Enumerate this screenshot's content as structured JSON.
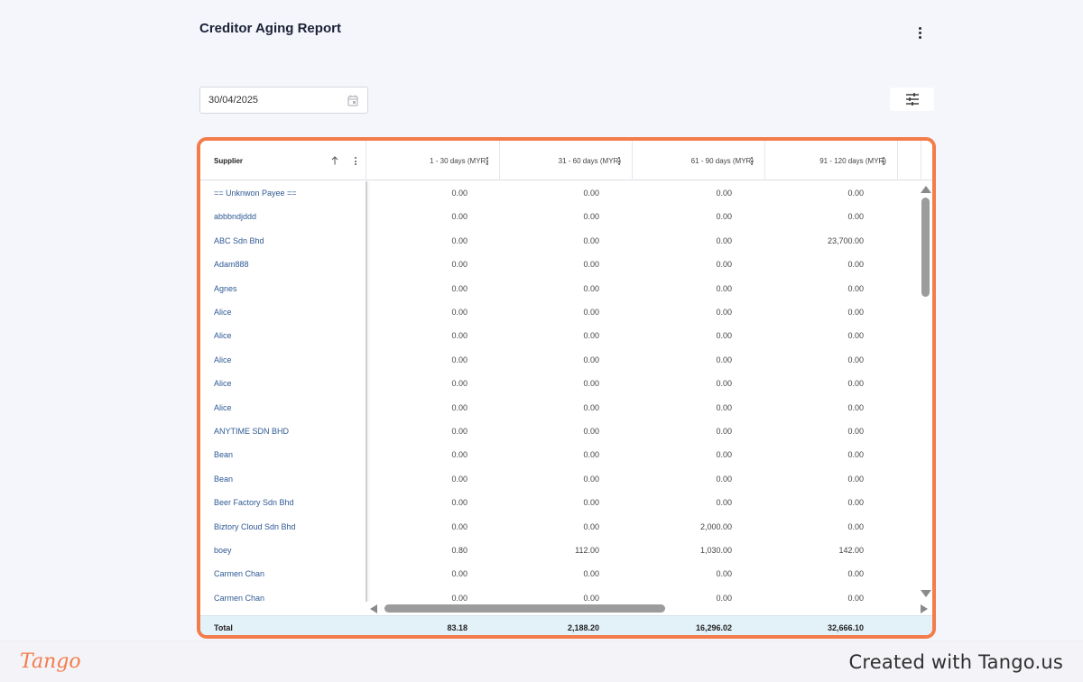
{
  "page": {
    "title": "Creditor Aging Report"
  },
  "date_filter": {
    "value": "30/04/2025"
  },
  "grid": {
    "accent_color": "#f37c4b",
    "columns": {
      "supplier": "Supplier",
      "d1_30": "1 - 30 days (MYR)",
      "d31_60": "31 - 60 days (MYR)",
      "d61_90": "61 - 90 days (MYR)",
      "d91_120": "91 - 120 days (MYR)"
    },
    "rows": [
      {
        "supplier": "== Unknwon Payee ==",
        "d1_30": "0.00",
        "d31_60": "0.00",
        "d61_90": "0.00",
        "d91_120": "0.00"
      },
      {
        "supplier": "abbbndjddd",
        "d1_30": "0.00",
        "d31_60": "0.00",
        "d61_90": "0.00",
        "d91_120": "0.00"
      },
      {
        "supplier": "ABC Sdn Bhd",
        "d1_30": "0.00",
        "d31_60": "0.00",
        "d61_90": "0.00",
        "d91_120": "23,700.00"
      },
      {
        "supplier": "Adam888",
        "d1_30": "0.00",
        "d31_60": "0.00",
        "d61_90": "0.00",
        "d91_120": "0.00"
      },
      {
        "supplier": "Agnes",
        "d1_30": "0.00",
        "d31_60": "0.00",
        "d61_90": "0.00",
        "d91_120": "0.00"
      },
      {
        "supplier": "Alice",
        "d1_30": "0.00",
        "d31_60": "0.00",
        "d61_90": "0.00",
        "d91_120": "0.00"
      },
      {
        "supplier": "Alice",
        "d1_30": "0.00",
        "d31_60": "0.00",
        "d61_90": "0.00",
        "d91_120": "0.00"
      },
      {
        "supplier": "Alice",
        "d1_30": "0.00",
        "d31_60": "0.00",
        "d61_90": "0.00",
        "d91_120": "0.00"
      },
      {
        "supplier": "Alice",
        "d1_30": "0.00",
        "d31_60": "0.00",
        "d61_90": "0.00",
        "d91_120": "0.00"
      },
      {
        "supplier": "Alice",
        "d1_30": "0.00",
        "d31_60": "0.00",
        "d61_90": "0.00",
        "d91_120": "0.00"
      },
      {
        "supplier": "ANYTIME SDN BHD",
        "d1_30": "0.00",
        "d31_60": "0.00",
        "d61_90": "0.00",
        "d91_120": "0.00"
      },
      {
        "supplier": "Bean",
        "d1_30": "0.00",
        "d31_60": "0.00",
        "d61_90": "0.00",
        "d91_120": "0.00"
      },
      {
        "supplier": "Bean",
        "d1_30": "0.00",
        "d31_60": "0.00",
        "d61_90": "0.00",
        "d91_120": "0.00"
      },
      {
        "supplier": "Beer Factory Sdn Bhd",
        "d1_30": "0.00",
        "d31_60": "0.00",
        "d61_90": "0.00",
        "d91_120": "0.00"
      },
      {
        "supplier": "Biztory Cloud Sdn Bhd",
        "d1_30": "0.00",
        "d31_60": "0.00",
        "d61_90": "2,000.00",
        "d91_120": "0.00"
      },
      {
        "supplier": "boey",
        "d1_30": "0.80",
        "d31_60": "112.00",
        "d61_90": "1,030.00",
        "d91_120": "142.00"
      },
      {
        "supplier": "Carmen Chan",
        "d1_30": "0.00",
        "d31_60": "0.00",
        "d61_90": "0.00",
        "d91_120": "0.00"
      },
      {
        "supplier": "Carmen Chan",
        "d1_30": "0.00",
        "d31_60": "0.00",
        "d61_90": "0.00",
        "d91_120": "0.00"
      }
    ],
    "total": {
      "label": "Total",
      "d1_30": "83.18",
      "d31_60": "2,188.20",
      "d61_90": "16,296.02",
      "d91_120": "32,666.10"
    }
  },
  "footer": {
    "logo_text": "Tango",
    "credit": "Created with Tango.us",
    "logo_color": "#f37c4b"
  }
}
